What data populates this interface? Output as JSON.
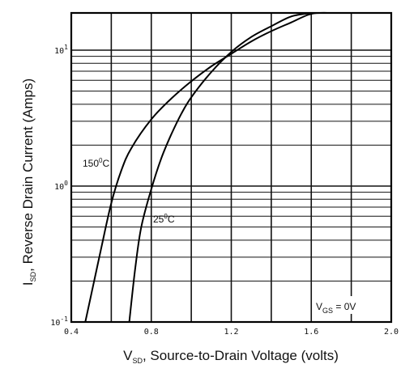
{
  "chart_data": {
    "type": "line",
    "title": "",
    "xlabel": {
      "main": "V",
      "sub": "SD",
      "rest": ", Source-to-Drain Voltage (volts)"
    },
    "ylabel": {
      "main": "I",
      "sub": "SD",
      "rest": ", Reverse Drain Current (Amps)"
    },
    "xlim": [
      0.4,
      2.0
    ],
    "ylim": [
      0.1,
      20
    ],
    "yscale": "log",
    "grid": true,
    "x_ticks": [
      {
        "value": 0.4,
        "label": "0.4"
      },
      {
        "value": 0.8,
        "label": "0.8"
      },
      {
        "value": 1.2,
        "label": "1.2"
      },
      {
        "value": 1.6,
        "label": "1.6"
      },
      {
        "value": 2.0,
        "label": "2.0"
      }
    ],
    "x_grid": [
      0.4,
      0.6,
      0.8,
      1.0,
      1.2,
      1.4,
      1.6,
      1.8,
      2.0
    ],
    "y_ticks": [
      {
        "value": 0.1,
        "base": "10",
        "exp": "-1"
      },
      {
        "value": 1,
        "base": "10",
        "exp": "0"
      },
      {
        "value": 10,
        "base": "10",
        "exp": "1"
      }
    ],
    "series": [
      {
        "name": "150°C",
        "label": {
          "text": "150",
          "sup": "0",
          "unit": "C"
        },
        "x": [
          0.47,
          0.5,
          0.55,
          0.6,
          0.65,
          0.7,
          0.8,
          0.9,
          1.0,
          1.1,
          1.2,
          1.3,
          1.4,
          1.5,
          1.6,
          1.7
        ],
        "y": [
          0.1,
          0.16,
          0.35,
          0.75,
          1.3,
          1.9,
          3.1,
          4.4,
          5.9,
          7.6,
          9.4,
          11.6,
          13.8,
          16.0,
          18.5,
          20.0
        ]
      },
      {
        "name": "25°C",
        "label": {
          "text": "25",
          "sup": "0",
          "unit": "C"
        },
        "x": [
          0.69,
          0.72,
          0.75,
          0.8,
          0.85,
          0.9,
          0.95,
          1.0,
          1.1,
          1.2,
          1.3,
          1.4,
          1.5,
          1.6
        ],
        "y": [
          0.1,
          0.25,
          0.5,
          0.95,
          1.6,
          2.4,
          3.4,
          4.5,
          6.9,
          9.7,
          12.5,
          15.0,
          17.7,
          20.0
        ]
      }
    ],
    "annotation": {
      "main": "V",
      "sub": "GS",
      "rest": " = 0V"
    }
  }
}
